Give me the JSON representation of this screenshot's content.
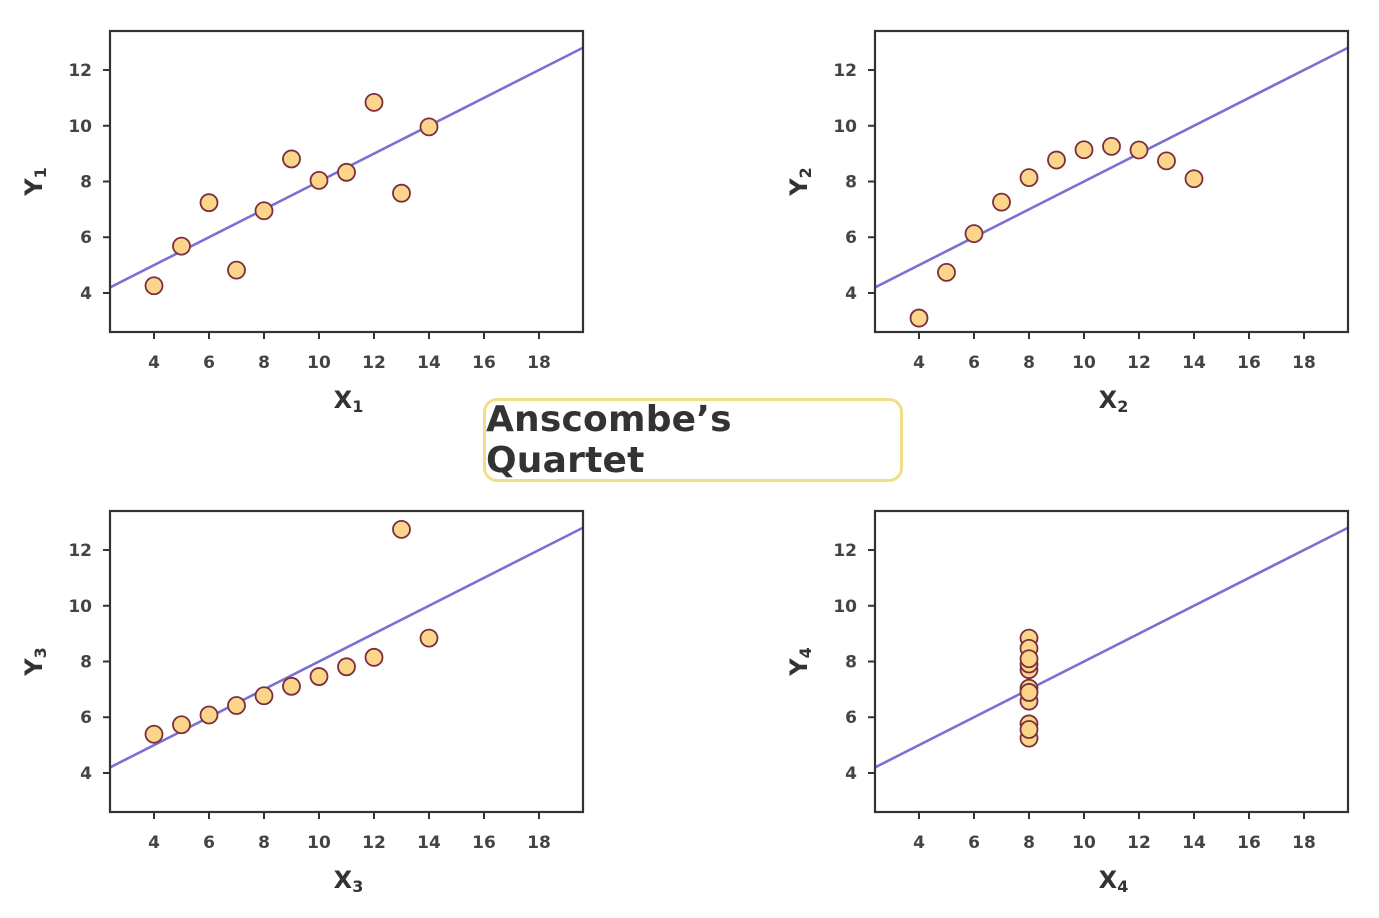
{
  "title": "Anscombe’s Quartet",
  "colors": {
    "line": "#7b6fd6",
    "point_fill": "#fbd58a",
    "point_stroke": "#7a2e3e",
    "frame": "#333333",
    "title_border": "#f3dd8a"
  },
  "chart_data": [
    {
      "type": "scatter",
      "xlabel": "X",
      "xlabel_sub": "1",
      "ylabel": "Y",
      "ylabel_sub": "1",
      "xlim": [
        2.4,
        19.6
      ],
      "ylim": [
        2.6,
        13.4
      ],
      "xticks": [
        4,
        6,
        8,
        10,
        12,
        14,
        16,
        18
      ],
      "yticks": [
        4,
        6,
        8,
        10,
        12
      ],
      "grid": false,
      "fit_line": {
        "intercept": 3.0,
        "slope": 0.5
      },
      "x": [
        4,
        5,
        6,
        7,
        8,
        9,
        10,
        11,
        12,
        13,
        14
      ],
      "y": [
        4.26,
        5.68,
        7.24,
        4.82,
        6.95,
        8.81,
        8.04,
        8.33,
        10.84,
        7.58,
        9.96
      ]
    },
    {
      "type": "scatter",
      "xlabel": "X",
      "xlabel_sub": "2",
      "ylabel": "Y",
      "ylabel_sub": "2",
      "xlim": [
        2.4,
        19.6
      ],
      "ylim": [
        2.6,
        13.4
      ],
      "xticks": [
        4,
        6,
        8,
        10,
        12,
        14,
        16,
        18
      ],
      "yticks": [
        4,
        6,
        8,
        10,
        12
      ],
      "grid": false,
      "fit_line": {
        "intercept": 3.0,
        "slope": 0.5
      },
      "x": [
        4,
        5,
        6,
        7,
        8,
        9,
        10,
        11,
        12,
        13,
        14
      ],
      "y": [
        3.1,
        4.74,
        6.13,
        7.26,
        8.14,
        8.77,
        9.14,
        9.26,
        9.13,
        8.74,
        8.1
      ]
    },
    {
      "type": "scatter",
      "xlabel": "X",
      "xlabel_sub": "3",
      "ylabel": "Y",
      "ylabel_sub": "3",
      "xlim": [
        2.4,
        19.6
      ],
      "ylim": [
        2.6,
        13.4
      ],
      "xticks": [
        4,
        6,
        8,
        10,
        12,
        14,
        16,
        18
      ],
      "yticks": [
        4,
        6,
        8,
        10,
        12
      ],
      "grid": false,
      "fit_line": {
        "intercept": 3.0,
        "slope": 0.5
      },
      "x": [
        4,
        5,
        6,
        7,
        8,
        9,
        10,
        11,
        12,
        13,
        14
      ],
      "y": [
        5.39,
        5.73,
        6.08,
        6.42,
        6.77,
        7.11,
        7.46,
        7.81,
        8.15,
        12.74,
        8.84
      ]
    },
    {
      "type": "scatter",
      "xlabel": "X",
      "xlabel_sub": "4",
      "ylabel": "Y",
      "ylabel_sub": "4",
      "xlim": [
        2.4,
        19.6
      ],
      "ylim": [
        2.6,
        13.4
      ],
      "xticks": [
        4,
        6,
        8,
        10,
        12,
        14,
        16,
        18
      ],
      "yticks": [
        4,
        6,
        8,
        10,
        12
      ],
      "grid": false,
      "fit_line": {
        "intercept": 3.0,
        "slope": 0.5
      },
      "x": [
        8,
        8,
        8,
        8,
        8,
        8,
        8,
        8,
        8,
        8,
        8
      ],
      "y": [
        6.58,
        5.76,
        7.71,
        8.84,
        8.47,
        7.04,
        5.25,
        5.56,
        7.91,
        6.89,
        8.1
      ]
    }
  ]
}
